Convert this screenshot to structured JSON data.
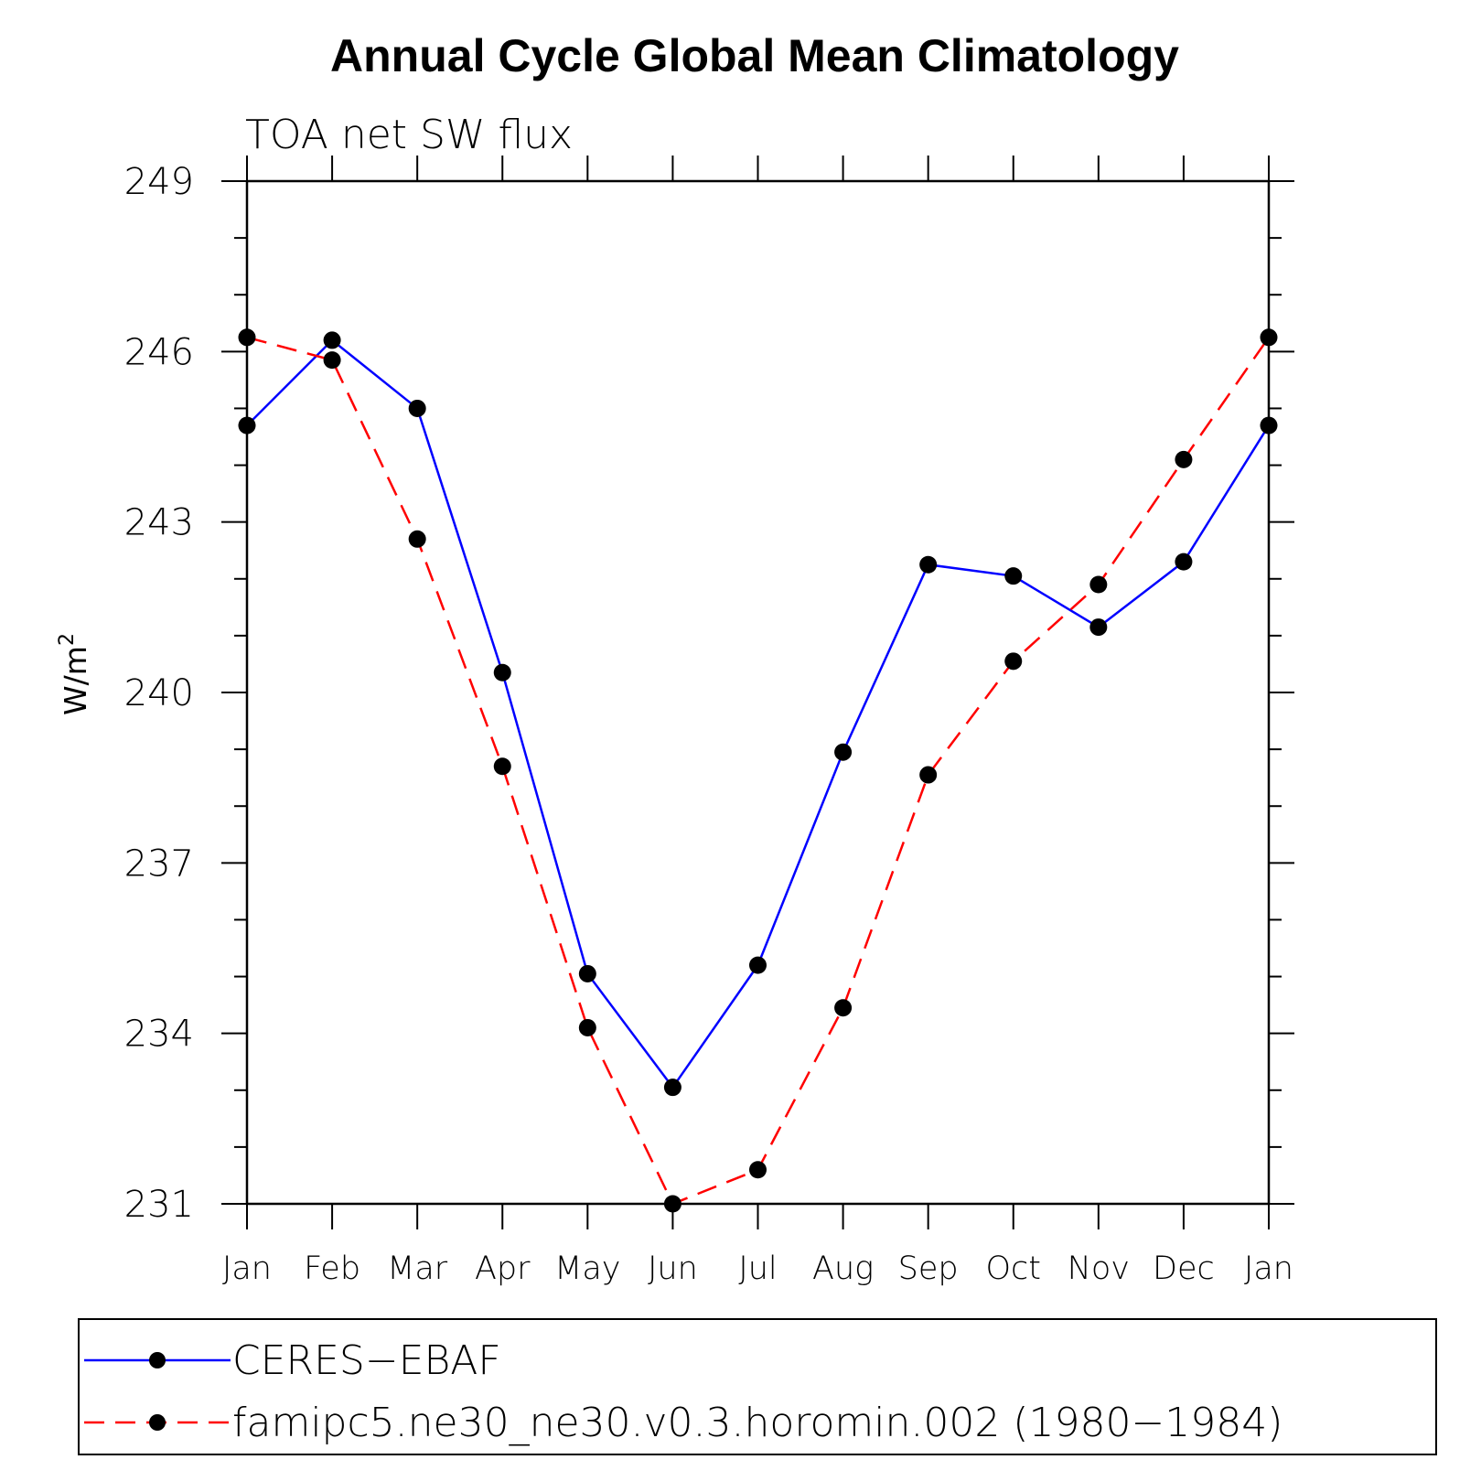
{
  "chart_data": {
    "type": "line",
    "title": "Annual Cycle Global Mean Climatology",
    "subtitle": "TOA net SW flux",
    "ylabel_base": "W/m",
    "ylabel_sup": "2",
    "xlabel": "",
    "categories": [
      "Jan",
      "Feb",
      "Mar",
      "Apr",
      "May",
      "Jun",
      "Jul",
      "Aug",
      "Sep",
      "Oct",
      "Nov",
      "Dec",
      "Jan"
    ],
    "ylim": [
      231,
      249
    ],
    "yticks": [
      231,
      234,
      237,
      240,
      243,
      246,
      249
    ],
    "yminor_step": 1,
    "grid": false,
    "legend_position": "bottom",
    "series": [
      {
        "name": "CERES−EBAF",
        "color": "#0000ff",
        "line_style": "solid",
        "marker": "filled-circle",
        "values": [
          244.7,
          246.2,
          245.0,
          240.35,
          235.05,
          233.05,
          235.2,
          238.95,
          242.25,
          242.05,
          241.15,
          242.3,
          244.7
        ]
      },
      {
        "name": "famipc5.ne30_ne30.v0.3.horomin.002 (1980−1984)",
        "color": "#ff0000",
        "line_style": "dashed",
        "marker": "filled-circle",
        "values": [
          246.25,
          245.85,
          242.7,
          238.7,
          234.1,
          231.0,
          231.6,
          234.45,
          238.55,
          240.55,
          241.9,
          244.1,
          246.25
        ]
      }
    ]
  }
}
